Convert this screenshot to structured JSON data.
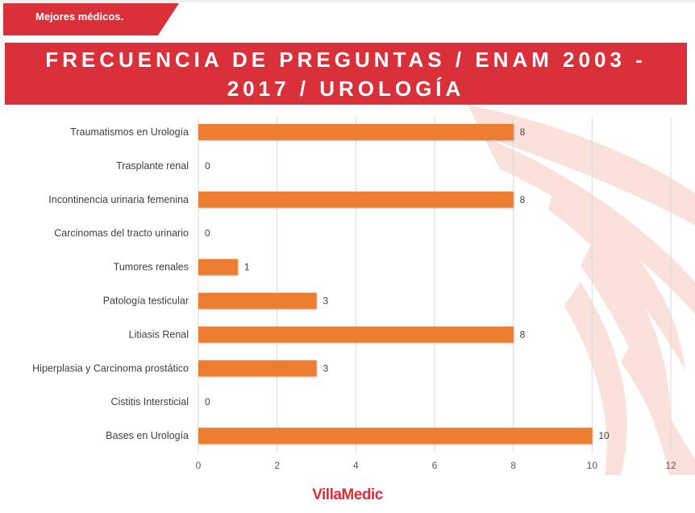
{
  "header": {
    "tagline": "Mejores médicos.",
    "title": "FRECUENCIA DE PREGUNTAS / ENAM 2003 - 2017 / UROLOGÍA"
  },
  "brand": {
    "logo_text": "VillaMedic"
  },
  "colors": {
    "accent": "#d9303a",
    "bar": "#ed7d31",
    "grid": "#d9d9d9",
    "text": "#404040"
  },
  "chart_data": {
    "type": "bar",
    "orientation": "horizontal",
    "categories": [
      "Traumatismos en Urología",
      "Trasplante renal",
      "Incontinencia urinaria femenina",
      "Carcinomas del tracto urinario",
      "Tumores renales",
      "Patología testicular",
      "Litiasis Renal",
      "Hiperplasia y Carcinoma prostático",
      "Cistitis Intersticial",
      "Bases en Urología"
    ],
    "values": [
      8,
      0,
      8,
      0,
      1,
      3,
      8,
      3,
      0,
      10
    ],
    "xlim": [
      0,
      12
    ],
    "xticks": [
      0,
      2,
      4,
      6,
      8,
      10,
      12
    ],
    "grid": true,
    "data_labels": true
  }
}
